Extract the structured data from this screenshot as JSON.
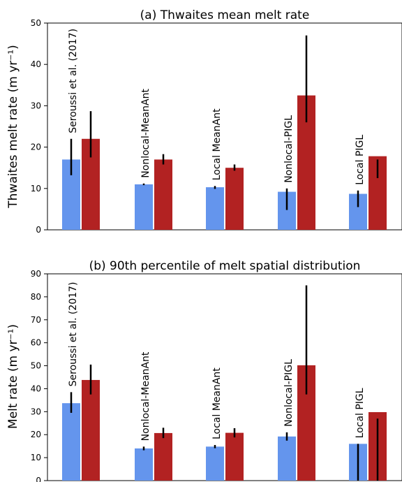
{
  "colors": {
    "series1": "#6495ED",
    "series2": "#B22222",
    "error": "#000000"
  },
  "chart_data": [
    {
      "type": "bar",
      "title": "(a) Thwaites mean melt rate",
      "ylabel": "Thwaites melt rate (m yr⁻¹)",
      "ylim": [
        0,
        50
      ],
      "yticks": [
        "0",
        "10",
        "20",
        "30",
        "40",
        "50"
      ],
      "categories": [
        "Seroussi et al. (2017)",
        "Nonlocal-MeanAnt",
        "Local MeanAnt",
        "Nonlocal-PIGL",
        "Local PIGL"
      ],
      "series": [
        {
          "values": [
            17,
            11,
            10.3,
            9.2,
            8.7
          ],
          "err_low": [
            13.2,
            10.8,
            9.9,
            4.8,
            5.5
          ],
          "err_high": [
            22,
            11.2,
            10.6,
            10,
            9.5
          ]
        },
        {
          "values": [
            22,
            17,
            15,
            32.5,
            17.8
          ],
          "err_low": [
            17.5,
            15.8,
            14.3,
            26,
            12.5
          ],
          "err_high": [
            28.7,
            18.3,
            15.8,
            47,
            17
          ]
        }
      ]
    },
    {
      "type": "bar",
      "title": "(b) 90th percentile of melt spatial distribution",
      "ylabel": "Melt rate (m yr⁻¹)",
      "ylim": [
        0,
        90
      ],
      "yticks": [
        "0",
        "10",
        "20",
        "30",
        "40",
        "50",
        "60",
        "70",
        "80",
        "90"
      ],
      "categories": [
        "Seroussi et al. (2017)",
        "Nonlocal-MeanAnt",
        "Local MeanAnt",
        "Nonlocal-PIGL",
        "Local PIGL"
      ],
      "series": [
        {
          "values": [
            33.7,
            14,
            14.8,
            19.2,
            16
          ],
          "err_low": [
            29.5,
            13.2,
            14.1,
            17.4,
            0
          ],
          "err_high": [
            38.5,
            14.8,
            15.5,
            21,
            16
          ]
        },
        {
          "values": [
            43.8,
            20.7,
            20.8,
            50.2,
            29.8
          ],
          "err_low": [
            37.5,
            18.5,
            18.8,
            37.5,
            0
          ],
          "err_high": [
            50.5,
            23,
            22.8,
            85,
            27
          ]
        }
      ]
    }
  ]
}
